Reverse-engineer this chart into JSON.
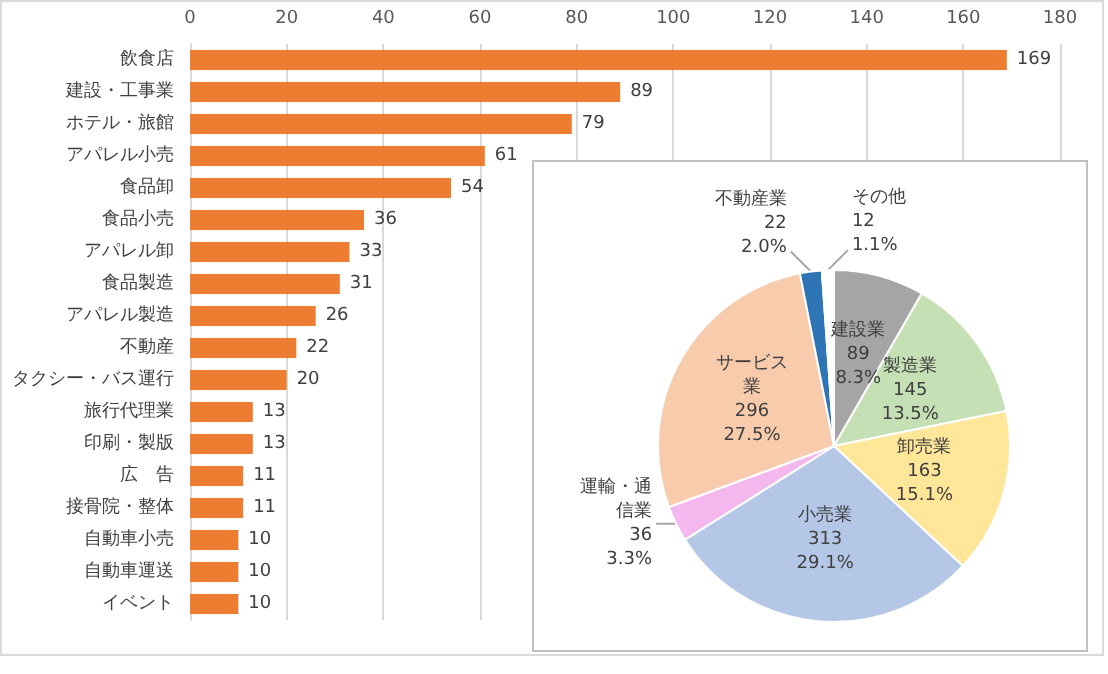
{
  "chart_data": [
    {
      "type": "bar",
      "orientation": "horizontal",
      "categories": [
        "飲食店",
        "建設・工事業",
        "ホテル・旅館",
        "アパレル小売",
        "食品卸",
        "食品小売",
        "アパレル卸",
        "食品製造",
        "アパレル製造",
        "不動産",
        "タクシー・バス運行",
        "旅行代理業",
        "印刷・製版",
        "広　告",
        "接骨院・整体",
        "自動車小売",
        "自動車運送",
        "イベント"
      ],
      "values": [
        169,
        89,
        79,
        61,
        54,
        36,
        33,
        31,
        26,
        22,
        20,
        13,
        13,
        11,
        11,
        10,
        10,
        10
      ],
      "color": "#ed7d31",
      "xlim": [
        0,
        180
      ],
      "xticks": [
        0,
        20,
        40,
        60,
        80,
        100,
        120,
        140,
        160,
        180
      ],
      "grid": "x",
      "data_labels": true
    },
    {
      "type": "pie",
      "categories": [
        "建設業",
        "製造業",
        "卸売業",
        "小売業",
        "運輸・通信業",
        "サービス業",
        "不動産業",
        "その他"
      ],
      "values": [
        8.3,
        13.5,
        15.1,
        29.1,
        3.3,
        27.5,
        2.0,
        1.1
      ],
      "value_labels": [
        "89\n8.3%",
        "145\n13.5%",
        "163\n15.1%",
        "313\n29.1%",
        "36\n3.3%",
        "296\n27.5%",
        "22\n2.0%",
        "12\n1.1%"
      ],
      "colors": [
        "#a5a5a5",
        "#c5e0b4",
        "#ffe699",
        "#b4c7e7",
        "#f4b8ef",
        "#f8cbad",
        "#2e75b6",
        "#ffffff"
      ]
    }
  ]
}
